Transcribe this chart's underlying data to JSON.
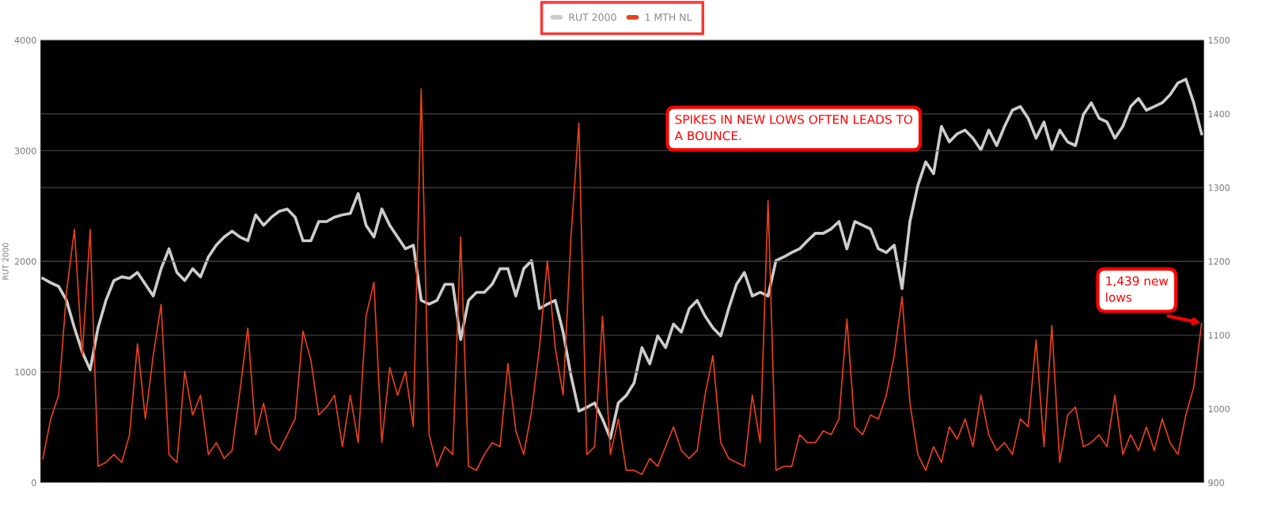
{
  "chart_data": {
    "type": "line",
    "ylabel": "RUT 2000",
    "categories": [
      null,
      null,
      null,
      null,
      null,
      null,
      null,
      null,
      null,
      null,
      null,
      null,
      null,
      null,
      null,
      null,
      null,
      null,
      null,
      null,
      null,
      null,
      null,
      null,
      null,
      null,
      null,
      null,
      null,
      null,
      null,
      null,
      null,
      null,
      null,
      null,
      null,
      null,
      null,
      null,
      null,
      null,
      null,
      null,
      null,
      null,
      null,
      null,
      null,
      null,
      null,
      null,
      null,
      null,
      null,
      null,
      null,
      null,
      null,
      null,
      null,
      null,
      null,
      null,
      null,
      null,
      null,
      null,
      null,
      null,
      null,
      null,
      null,
      null,
      null,
      null,
      null,
      null,
      null,
      null,
      null,
      null,
      null,
      null,
      null,
      null,
      null,
      null,
      null,
      null,
      null,
      null,
      null,
      null,
      null,
      null,
      null,
      null,
      null,
      null,
      null,
      null,
      null,
      null,
      null,
      null,
      null,
      null,
      null,
      null,
      null,
      null,
      null,
      null,
      null,
      null,
      null,
      null,
      null,
      null,
      null,
      null,
      null,
      null,
      null,
      null,
      null,
      null,
      null,
      null,
      null,
      null,
      null,
      null,
      null,
      null,
      null,
      null,
      null,
      null,
      null,
      null,
      null,
      null,
      null,
      null,
      null,
      null
    ],
    "series": [
      {
        "name": "RUT 2000",
        "color": "#cccccc",
        "axis": "y2",
        "values": [
          1177,
          1171,
          1166,
          1147,
          1110,
          1077,
          1053,
          1110,
          1147,
          1174,
          1179,
          1177,
          1185,
          1169,
          1153,
          1190,
          1217,
          1185,
          1174,
          1190,
          1179,
          1206,
          1222,
          1233,
          1241,
          1233,
          1228,
          1263,
          1249,
          1260,
          1268,
          1271,
          1260,
          1228,
          1228,
          1254,
          1254,
          1260,
          1263,
          1265,
          1292,
          1249,
          1233,
          1271,
          1249,
          1233,
          1217,
          1222,
          1147,
          1142,
          1147,
          1169,
          1169,
          1094,
          1147,
          1158,
          1158,
          1169,
          1190,
          1190,
          1153,
          1190,
          1201,
          1136,
          1142,
          1147,
          1104,
          1045,
          997,
          1002,
          1008,
          986,
          960,
          1008,
          1018,
          1035,
          1083,
          1061,
          1099,
          1083,
          1115,
          1104,
          1136,
          1147,
          1126,
          1110,
          1099,
          1136,
          1169,
          1185,
          1153,
          1158,
          1153,
          1201,
          1206,
          1212,
          1217,
          1228,
          1238,
          1238,
          1244,
          1254,
          1217,
          1254,
          1249,
          1244,
          1217,
          1212,
          1222,
          1163,
          1254,
          1303,
          1335,
          1319,
          1383,
          1362,
          1373,
          1378,
          1367,
          1351,
          1378,
          1357,
          1383,
          1405,
          1410,
          1394,
          1367,
          1389,
          1351,
          1378,
          1362,
          1357,
          1399,
          1415,
          1394,
          1389,
          1367,
          1383,
          1410,
          1421,
          1405,
          1410,
          1415,
          1426,
          1442,
          1447,
          1415,
          1373
        ]
      },
      {
        "name": "1 MTH NL",
        "color": "#e8401c",
        "values": [
          218,
          576,
          790,
          1720,
          2290,
          1148,
          2290,
          147,
          182,
          254,
          182,
          433,
          1255,
          576,
          1148,
          1612,
          254,
          182,
          1005,
          611,
          790,
          254,
          361,
          218,
          290,
          826,
          1398,
          433,
          719,
          361,
          290,
          433,
          576,
          1370,
          1108,
          611,
          683,
          790,
          325,
          790,
          361,
          1505,
          1810,
          361,
          1040,
          790,
          1005,
          504,
          3560,
          433,
          147,
          325,
          254,
          2220,
          147,
          111,
          254,
          361,
          325,
          1076,
          468,
          254,
          647,
          1219,
          2005,
          1219,
          790,
          2220,
          3250,
          254,
          325,
          1505,
          254,
          576,
          111,
          111,
          75,
          218,
          147,
          325,
          504,
          290,
          218,
          290,
          790,
          1148,
          361,
          218,
          182,
          147,
          790,
          361,
          2550,
          111,
          147,
          147,
          433,
          361,
          361,
          468,
          433,
          576,
          1480,
          504,
          433,
          611,
          576,
          790,
          1148,
          1680,
          719,
          254,
          111,
          325,
          182,
          504,
          393,
          576,
          325,
          790,
          433,
          290,
          361,
          254,
          576,
          504,
          1290,
          325,
          1420,
          182,
          611,
          683,
          325,
          361,
          433,
          325,
          790,
          254,
          433,
          290,
          504,
          290,
          576,
          361,
          254,
          611,
          862,
          1439
        ]
      }
    ],
    "ylim": [
      0,
      4000
    ],
    "yticks": [
      0,
      1000,
      2000,
      3000,
      4000
    ],
    "y2lim": [
      900,
      1500
    ],
    "y2ticks": [
      900,
      1000,
      1100,
      1200,
      1300,
      1400,
      1500
    ],
    "grid": true,
    "legend": "top",
    "line_style": "solid",
    "marker": "none",
    "annotations": [
      "SPIKES IN NEW LOWS OFTEN LEADS TO A BOUNCE.",
      "1,439 new lows"
    ]
  }
}
